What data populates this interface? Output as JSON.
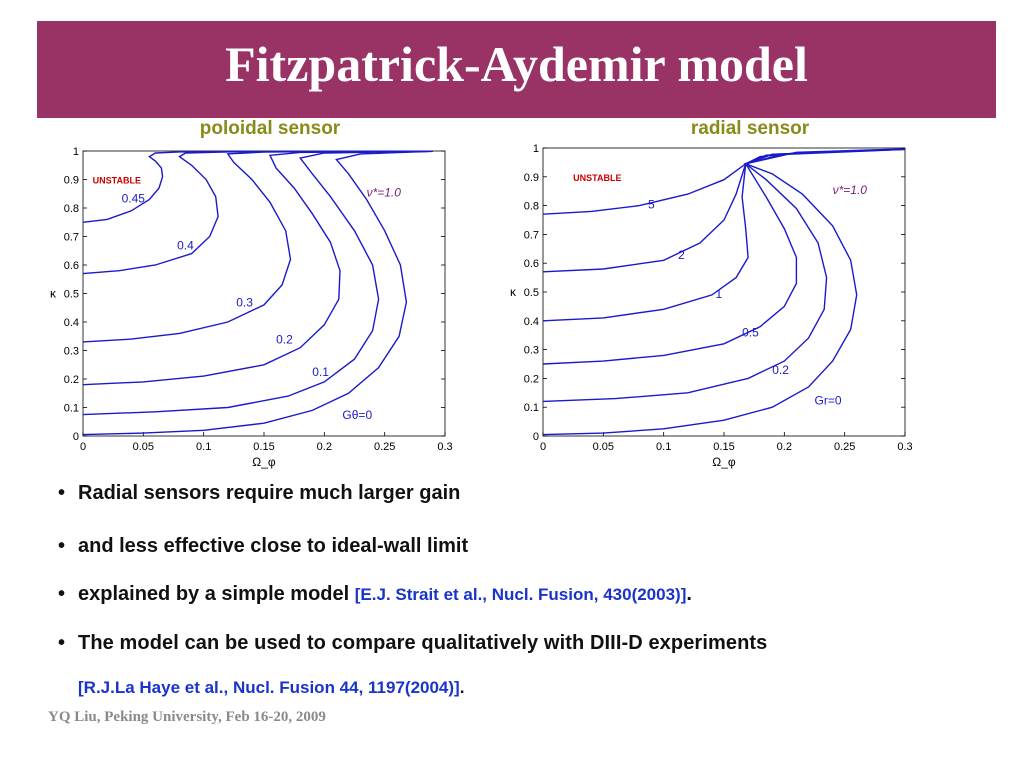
{
  "slide": {
    "title": "Fitzpatrick-Aydemir model",
    "accent_color": "#993366",
    "footer": "YQ Liu, Peking University, Feb 16-20, 2009"
  },
  "bullets": [
    {
      "text": "Radial sensors require much larger gain"
    },
    {
      "text": "and less effective close to ideal-wall limit"
    },
    {
      "text": "explained by a simple model ",
      "ref": "[E.J. Strait et al., Nucl. Fusion, 430(2003)]",
      "after": "."
    },
    {
      "text": "The model can be used to compare qualitatively with DIII-D experiments"
    }
  ],
  "bullet4_ref": {
    "ref": "[R.J.La Haye et al., Nucl. Fusion 44, 1197(2004)]",
    "after": "."
  },
  "chart_data": [
    {
      "type": "line",
      "title": "poloidal sensor",
      "xlabel": "Ω_φ",
      "ylabel": "κ",
      "xlim": [
        0,
        0.3
      ],
      "ylim": [
        0,
        1
      ],
      "xticks": [
        "0",
        "0.05",
        "0.1",
        "0.15",
        "0.2",
        "0.25",
        "0.3"
      ],
      "yticks": [
        "0",
        "0.1",
        "0.2",
        "0.3",
        "0.4",
        "0.5",
        "0.6",
        "0.7",
        "0.8",
        "0.9",
        "1"
      ],
      "region_label": "UNSTABLE",
      "param_label": "ν*=1.0",
      "line_color": "#1a1acc",
      "series": [
        {
          "name": "0.45",
          "points": [
            [
              0,
              0.75
            ],
            [
              0.02,
              0.76
            ],
            [
              0.04,
              0.79
            ],
            [
              0.055,
              0.83
            ],
            [
              0.063,
              0.87
            ],
            [
              0.066,
              0.91
            ],
            [
              0.065,
              0.94
            ],
            [
              0.06,
              0.965
            ],
            [
              0.055,
              0.98
            ],
            [
              0.06,
              0.993
            ],
            [
              0.08,
              0.997
            ],
            [
              0.12,
              0.998
            ],
            [
              0.2,
              0.998
            ],
            [
              0.29,
              0.999
            ]
          ]
        },
        {
          "name": "0.4",
          "points": [
            [
              0,
              0.57
            ],
            [
              0.03,
              0.58
            ],
            [
              0.06,
              0.6
            ],
            [
              0.09,
              0.64
            ],
            [
              0.105,
              0.7
            ],
            [
              0.112,
              0.77
            ],
            [
              0.11,
              0.84
            ],
            [
              0.102,
              0.9
            ],
            [
              0.09,
              0.95
            ],
            [
              0.08,
              0.98
            ],
            [
              0.085,
              0.993
            ],
            [
              0.12,
              0.997
            ],
            [
              0.2,
              0.998
            ],
            [
              0.29,
              0.999
            ]
          ]
        },
        {
          "name": "0.3",
          "points": [
            [
              0,
              0.33
            ],
            [
              0.04,
              0.34
            ],
            [
              0.08,
              0.36
            ],
            [
              0.12,
              0.4
            ],
            [
              0.15,
              0.46
            ],
            [
              0.165,
              0.53
            ],
            [
              0.172,
              0.62
            ],
            [
              0.168,
              0.72
            ],
            [
              0.155,
              0.82
            ],
            [
              0.14,
              0.9
            ],
            [
              0.125,
              0.96
            ],
            [
              0.12,
              0.99
            ],
            [
              0.15,
              0.996
            ],
            [
              0.2,
              0.998
            ],
            [
              0.29,
              0.999
            ]
          ]
        },
        {
          "name": "0.2",
          "points": [
            [
              0,
              0.18
            ],
            [
              0.05,
              0.19
            ],
            [
              0.1,
              0.21
            ],
            [
              0.15,
              0.25
            ],
            [
              0.18,
              0.31
            ],
            [
              0.2,
              0.39
            ],
            [
              0.212,
              0.48
            ],
            [
              0.213,
              0.58
            ],
            [
              0.205,
              0.68
            ],
            [
              0.19,
              0.78
            ],
            [
              0.175,
              0.87
            ],
            [
              0.16,
              0.94
            ],
            [
              0.155,
              0.985
            ],
            [
              0.18,
              0.995
            ],
            [
              0.29,
              0.999
            ]
          ]
        },
        {
          "name": "0.1",
          "points": [
            [
              0,
              0.075
            ],
            [
              0.06,
              0.085
            ],
            [
              0.12,
              0.1
            ],
            [
              0.17,
              0.14
            ],
            [
              0.2,
              0.19
            ],
            [
              0.225,
              0.27
            ],
            [
              0.24,
              0.37
            ],
            [
              0.245,
              0.48
            ],
            [
              0.24,
              0.6
            ],
            [
              0.225,
              0.72
            ],
            [
              0.205,
              0.84
            ],
            [
              0.19,
              0.92
            ],
            [
              0.18,
              0.975
            ],
            [
              0.2,
              0.993
            ],
            [
              0.29,
              0.999
            ]
          ]
        },
        {
          "name": "Gθ=0",
          "points": [
            [
              0,
              0.005
            ],
            [
              0.05,
              0.01
            ],
            [
              0.1,
              0.02
            ],
            [
              0.15,
              0.045
            ],
            [
              0.19,
              0.09
            ],
            [
              0.22,
              0.15
            ],
            [
              0.245,
              0.24
            ],
            [
              0.262,
              0.35
            ],
            [
              0.268,
              0.47
            ],
            [
              0.263,
              0.6
            ],
            [
              0.25,
              0.72
            ],
            [
              0.235,
              0.83
            ],
            [
              0.22,
              0.92
            ],
            [
              0.21,
              0.97
            ],
            [
              0.23,
              0.99
            ],
            [
              0.29,
              0.999
            ]
          ]
        }
      ]
    },
    {
      "type": "line",
      "title": "radial sensor",
      "xlabel": "Ω_φ",
      "ylabel": "κ",
      "xlim": [
        0,
        0.3
      ],
      "ylim": [
        0,
        1
      ],
      "xticks": [
        "0",
        "0.05",
        "0.1",
        "0.15",
        "0.2",
        "0.25",
        "0.3"
      ],
      "yticks": [
        "0",
        "0.1",
        "0.2",
        "0.3",
        "0.4",
        "0.5",
        "0.6",
        "0.7",
        "0.8",
        "0.9",
        "1"
      ],
      "region_label": "UNSTABLE",
      "param_label": "ν*=1.0",
      "line_color": "#1a1acc",
      "series": [
        {
          "name": "5",
          "points": [
            [
              0,
              0.77
            ],
            [
              0.04,
              0.78
            ],
            [
              0.08,
              0.8
            ],
            [
              0.12,
              0.84
            ],
            [
              0.15,
              0.89
            ],
            [
              0.168,
              0.945
            ],
            [
              0.18,
              0.97
            ],
            [
              0.22,
              0.985
            ],
            [
              0.3,
              0.995
            ]
          ]
        },
        {
          "name": "2",
          "points": [
            [
              0,
              0.57
            ],
            [
              0.05,
              0.58
            ],
            [
              0.1,
              0.61
            ],
            [
              0.13,
              0.67
            ],
            [
              0.15,
              0.75
            ],
            [
              0.16,
              0.84
            ],
            [
              0.168,
              0.945
            ],
            [
              0.185,
              0.975
            ],
            [
              0.3,
              0.995
            ]
          ]
        },
        {
          "name": "1",
          "points": [
            [
              0,
              0.4
            ],
            [
              0.05,
              0.41
            ],
            [
              0.1,
              0.44
            ],
            [
              0.14,
              0.49
            ],
            [
              0.16,
              0.55
            ],
            [
              0.17,
              0.62
            ],
            [
              0.168,
              0.72
            ],
            [
              0.165,
              0.83
            ],
            [
              0.168,
              0.945
            ],
            [
              0.19,
              0.978
            ],
            [
              0.3,
              0.996
            ]
          ]
        },
        {
          "name": "0.5",
          "points": [
            [
              0,
              0.25
            ],
            [
              0.05,
              0.26
            ],
            [
              0.1,
              0.28
            ],
            [
              0.15,
              0.32
            ],
            [
              0.18,
              0.38
            ],
            [
              0.2,
              0.45
            ],
            [
              0.21,
              0.53
            ],
            [
              0.21,
              0.62
            ],
            [
              0.2,
              0.72
            ],
            [
              0.185,
              0.83
            ],
            [
              0.168,
              0.945
            ],
            [
              0.19,
              0.978
            ],
            [
              0.3,
              0.996
            ]
          ]
        },
        {
          "name": "0.2",
          "points": [
            [
              0,
              0.12
            ],
            [
              0.06,
              0.13
            ],
            [
              0.12,
              0.15
            ],
            [
              0.17,
              0.2
            ],
            [
              0.2,
              0.26
            ],
            [
              0.22,
              0.34
            ],
            [
              0.233,
              0.44
            ],
            [
              0.235,
              0.55
            ],
            [
              0.228,
              0.67
            ],
            [
              0.21,
              0.79
            ],
            [
              0.185,
              0.89
            ],
            [
              0.168,
              0.945
            ],
            [
              0.2,
              0.98
            ],
            [
              0.3,
              0.996
            ]
          ]
        },
        {
          "name": "Gr=0",
          "points": [
            [
              0,
              0.005
            ],
            [
              0.05,
              0.01
            ],
            [
              0.1,
              0.025
            ],
            [
              0.15,
              0.055
            ],
            [
              0.19,
              0.1
            ],
            [
              0.22,
              0.17
            ],
            [
              0.24,
              0.26
            ],
            [
              0.255,
              0.37
            ],
            [
              0.26,
              0.49
            ],
            [
              0.255,
              0.61
            ],
            [
              0.24,
              0.73
            ],
            [
              0.215,
              0.84
            ],
            [
              0.19,
              0.91
            ],
            [
              0.168,
              0.945
            ],
            [
              0.21,
              0.985
            ],
            [
              0.3,
              0.997
            ]
          ]
        }
      ]
    }
  ]
}
